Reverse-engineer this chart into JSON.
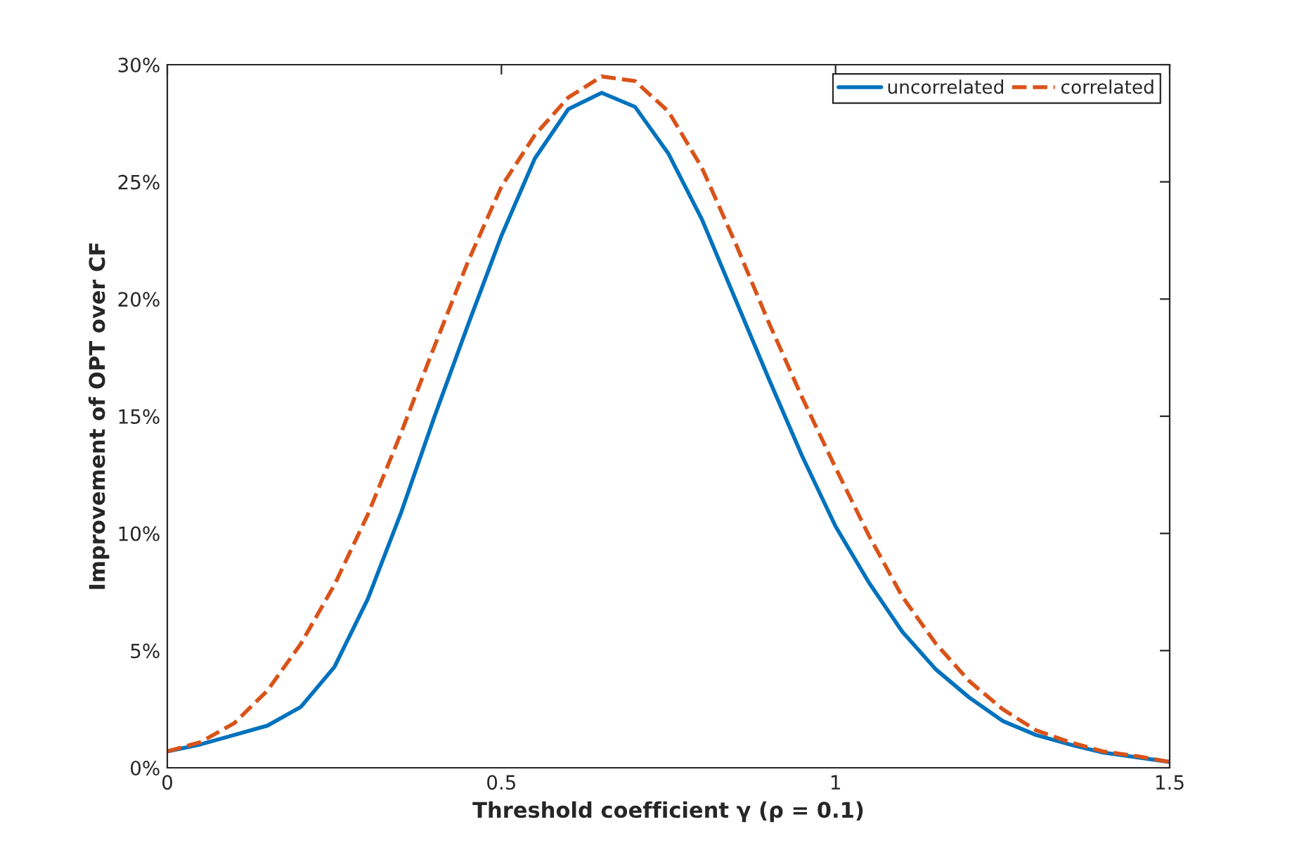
{
  "chart_data": {
    "type": "line",
    "xlabel": "Threshold coefficient γ (ρ = 0.1)",
    "ylabel": "Improvement of OPT over CF",
    "x": [
      0,
      0.05,
      0.1,
      0.15,
      0.2,
      0.25,
      0.3,
      0.35,
      0.4,
      0.45,
      0.5,
      0.55,
      0.6,
      0.65,
      0.7,
      0.75,
      0.8,
      0.85,
      0.9,
      0.95,
      1.0,
      1.05,
      1.1,
      1.15,
      1.2,
      1.25,
      1.3,
      1.35,
      1.4,
      1.45,
      1.5
    ],
    "series": [
      {
        "name": "uncorrelated",
        "color": "#0072bd",
        "line_style": "solid",
        "values": [
          0.7,
          1.0,
          1.4,
          1.8,
          2.6,
          4.3,
          7.2,
          10.9,
          15.0,
          18.9,
          22.7,
          26.0,
          28.1,
          28.8,
          28.2,
          26.2,
          23.4,
          20.0,
          16.6,
          13.3,
          10.3,
          7.9,
          5.8,
          4.2,
          3.0,
          2.0,
          1.4,
          1.0,
          0.65,
          0.45,
          0.25
        ]
      },
      {
        "name": "correlated",
        "color": "#d95319",
        "line_style": "dashed",
        "values": [
          0.7,
          1.1,
          1.9,
          3.3,
          5.3,
          7.8,
          10.8,
          14.3,
          18.0,
          21.6,
          24.8,
          27.0,
          28.6,
          29.5,
          29.3,
          28.0,
          25.6,
          22.4,
          19.0,
          15.8,
          12.8,
          9.9,
          7.3,
          5.3,
          3.7,
          2.5,
          1.6,
          1.1,
          0.7,
          0.5,
          0.25
        ]
      }
    ],
    "xlim": [
      0,
      1.5
    ],
    "xticks": [
      0,
      0.5,
      1,
      1.5
    ],
    "ylim": [
      0,
      30
    ],
    "yticks": [
      {
        "value": 0,
        "label": "0%"
      },
      {
        "value": 5,
        "label": "5%"
      },
      {
        "value": 10,
        "label": "10%"
      },
      {
        "value": 15,
        "label": "15%"
      },
      {
        "value": 20,
        "label": "20%"
      },
      {
        "value": 25,
        "label": "25%"
      },
      {
        "value": 30,
        "label": "30%"
      }
    ],
    "legend": "top right",
    "grid": false
  }
}
